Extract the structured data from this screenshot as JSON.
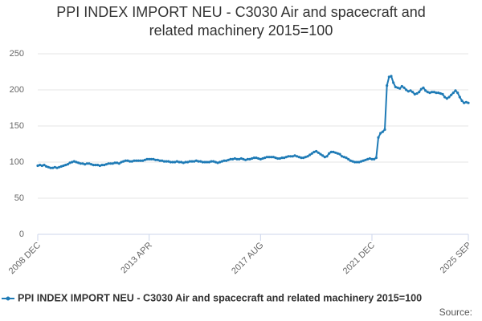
{
  "chart_data": {
    "type": "line",
    "title": "PPI INDEX IMPORT NEU - C3030 Air and spacecraft and related machinery 2015=100",
    "categories": [
      "2008 DEC",
      null,
      null,
      null,
      null,
      null,
      null,
      null,
      null,
      null,
      null,
      null,
      null,
      null,
      null,
      null,
      null,
      null,
      null,
      null,
      null,
      null,
      null,
      null,
      null,
      null,
      null,
      null,
      null,
      null,
      null,
      null,
      null,
      null,
      null,
      null,
      null,
      null,
      null,
      null,
      null,
      null,
      null,
      null,
      null,
      null,
      null,
      null,
      null,
      null,
      null,
      null,
      "2013 APR",
      null,
      null,
      null,
      null,
      null,
      null,
      null,
      null,
      null,
      null,
      null,
      null,
      null,
      null,
      null,
      null,
      null,
      null,
      null,
      null,
      null,
      null,
      null,
      null,
      null,
      null,
      null,
      null,
      null,
      null,
      null,
      null,
      null,
      null,
      null,
      null,
      null,
      null,
      null,
      null,
      null,
      null,
      null,
      null,
      null,
      null,
      null,
      null,
      null,
      null,
      null,
      "2017 AUG",
      null,
      null,
      null,
      null,
      null,
      null,
      null,
      null,
      null,
      null,
      null,
      null,
      null,
      null,
      null,
      null,
      null,
      null,
      null,
      null,
      null,
      null,
      null,
      null,
      null,
      null,
      null,
      null,
      null,
      null,
      null,
      null,
      null,
      null,
      null,
      null,
      null,
      null,
      null,
      null,
      null,
      null,
      null,
      null,
      null,
      null,
      null,
      null,
      null,
      null,
      null,
      "2021 DEC",
      null,
      null,
      null,
      null,
      null,
      null,
      null,
      null,
      null,
      null,
      null,
      null,
      null,
      null,
      null,
      null,
      null,
      null,
      null,
      null,
      null,
      null,
      null,
      null,
      null,
      null,
      null,
      null,
      null,
      null,
      null,
      null,
      null,
      null,
      null,
      null,
      null,
      null,
      null,
      null,
      null,
      null,
      null,
      null,
      "2025 SEP"
    ],
    "series": [
      {
        "name": "PPI INDEX IMPORT NEU - C3030 Air and spacecraft and related machinery 2015=100",
        "color": "#1f7bb6",
        "values": [
          95,
          96,
          95,
          96,
          94,
          93,
          92,
          92,
          93,
          92,
          93,
          94,
          95,
          96,
          97,
          99,
          100,
          101,
          100,
          99,
          98,
          98,
          97,
          98,
          98,
          97,
          96,
          96,
          96,
          95,
          96,
          96,
          97,
          98,
          98,
          98,
          99,
          99,
          98,
          100,
          101,
          102,
          102,
          101,
          101,
          102,
          102,
          102,
          102,
          102,
          103,
          104,
          104,
          104,
          104,
          103,
          103,
          102,
          102,
          101,
          101,
          101,
          100,
          100,
          100,
          101,
          100,
          100,
          99,
          100,
          100,
          101,
          101,
          101,
          102,
          101,
          101,
          100,
          100,
          100,
          100,
          101,
          101,
          100,
          99,
          100,
          101,
          102,
          102,
          103,
          104,
          104,
          105,
          104,
          104,
          105,
          104,
          103,
          104,
          104,
          105,
          106,
          106,
          105,
          104,
          105,
          106,
          107,
          107,
          107,
          107,
          106,
          105,
          105,
          106,
          106,
          107,
          108,
          108,
          108,
          109,
          108,
          107,
          106,
          106,
          107,
          108,
          110,
          112,
          114,
          115,
          113,
          111,
          109,
          107,
          108,
          112,
          114,
          114,
          113,
          112,
          111,
          108,
          107,
          106,
          104,
          102,
          101,
          100,
          100,
          100,
          101,
          102,
          103,
          104,
          105,
          104,
          104,
          106,
          134,
          140,
          142,
          145,
          206,
          218,
          219,
          210,
          204,
          203,
          202,
          205,
          203,
          200,
          198,
          199,
          197,
          194,
          195,
          197,
          201,
          203,
          199,
          197,
          196,
          197,
          197,
          196,
          196,
          195,
          194,
          190,
          188,
          190,
          193,
          196,
          199,
          196,
          190,
          185,
          182,
          183,
          182
        ]
      }
    ],
    "ylim": [
      0,
      250
    ],
    "yticks": [
      0,
      50,
      100,
      150,
      200,
      250
    ],
    "grid": true,
    "legend": "bottom",
    "source": "Source:"
  }
}
